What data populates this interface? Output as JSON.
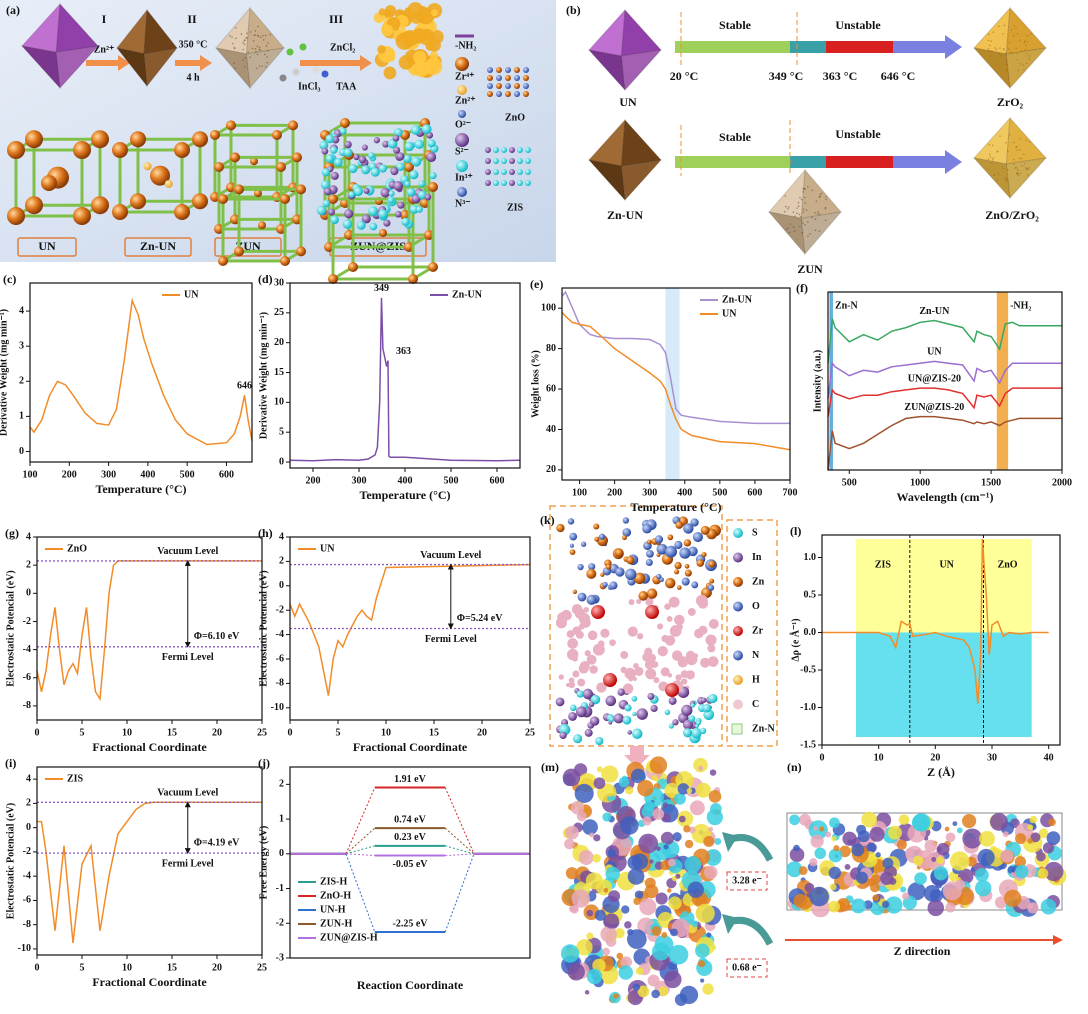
{
  "chart_data": [
    {
      "type": "line",
      "label": "(c)",
      "xlabel": "Temperature (°C)",
      "ylabel": "Derivative Weight (mg min⁻¹)",
      "x": [
        100,
        110,
        130,
        150,
        170,
        190,
        210,
        240,
        270,
        300,
        320,
        340,
        360,
        375,
        390,
        410,
        440,
        470,
        500,
        550,
        600,
        620,
        635,
        646,
        655,
        665
      ],
      "series": [
        {
          "name": "UN",
          "color": "#f28c28",
          "values": [
            0.7,
            0.55,
            0.9,
            1.6,
            2.0,
            1.9,
            1.6,
            1.1,
            0.8,
            0.75,
            1.2,
            2.6,
            4.3,
            3.9,
            3.2,
            2.5,
            1.6,
            0.9,
            0.5,
            0.2,
            0.25,
            0.5,
            1.0,
            1.6,
            0.9,
            0.3
          ]
        }
      ],
      "xlim": [
        100,
        665
      ],
      "xticks": [
        100,
        200,
        300,
        400,
        500,
        600
      ],
      "ylim": [
        -0.3,
        4.8
      ],
      "yticks": [
        0,
        1,
        2,
        3,
        4
      ],
      "peaks": [
        646
      ],
      "legend": "upper right"
    },
    {
      "type": "line",
      "label": "(d)",
      "xlabel": "Temperature (°C)",
      "ylabel": "Derivative Weight (mg min⁻¹)",
      "x": [
        150,
        200,
        250,
        300,
        320,
        335,
        340,
        345,
        349,
        352,
        356,
        360,
        363,
        365,
        368,
        400,
        500,
        600,
        650
      ],
      "series": [
        {
          "name": "Zn-UN",
          "color": "#7b4fa8",
          "values": [
            0.3,
            0.2,
            0.4,
            0.3,
            0.5,
            1.2,
            2.5,
            10,
            27.5,
            19,
            17.5,
            16,
            17,
            1,
            0.8,
            0.8,
            0.3,
            0.2,
            0.3
          ]
        }
      ],
      "xlim": [
        150,
        650
      ],
      "xticks": [
        200,
        300,
        400,
        500,
        600
      ],
      "ylim": [
        -1,
        30
      ],
      "yticks": [
        0,
        5,
        10,
        15,
        20,
        25,
        30
      ],
      "peaks": [
        349,
        363
      ],
      "legend": "upper right"
    },
    {
      "type": "line",
      "label": "(e)",
      "xlabel": "Temperature (°C)",
      "ylabel": "Weight loss (%)",
      "x": [
        50,
        60,
        80,
        100,
        130,
        150,
        200,
        250,
        300,
        330,
        345,
        360,
        375,
        390,
        420,
        500,
        600,
        700
      ],
      "series": [
        {
          "name": "Zn-UN",
          "color": "#a98fd0",
          "values": [
            106,
            108,
            100,
            92,
            87,
            86,
            85,
            85,
            84.5,
            82,
            78,
            65,
            50,
            47,
            46,
            44,
            43,
            43
          ]
        },
        {
          "name": "UN",
          "color": "#f28c28",
          "values": [
            98,
            96,
            93,
            92,
            91,
            88,
            80,
            74,
            68,
            64,
            60,
            52,
            45,
            40,
            37,
            34,
            33,
            30
          ]
        }
      ],
      "xlim": [
        50,
        700
      ],
      "xticks": [
        100,
        200,
        300,
        400,
        500,
        600,
        700
      ],
      "ylim": [
        15,
        110
      ],
      "yticks": [
        20,
        40,
        60,
        80,
        100
      ],
      "bands": [
        [
          345,
          385
        ]
      ],
      "band_colors": [
        "#cfe6f8"
      ],
      "legend": "upper right"
    },
    {
      "type": "line",
      "label": "(f)",
      "xlabel": "Wavelength (cm⁻¹)",
      "ylabel": "Intensity (a.u.)",
      "x": [
        350,
        380,
        400,
        500,
        600,
        700,
        800,
        900,
        1000,
        1100,
        1200,
        1300,
        1380,
        1400,
        1450,
        1500,
        1560,
        1600,
        1650,
        1700,
        1800,
        1900,
        2000
      ],
      "series": [
        {
          "name": "Zn-UN",
          "color": "#3aa860",
          "values": [
            6,
            8.5,
            8,
            7.2,
            7.6,
            7.3,
            7.8,
            8,
            8.3,
            8.4,
            8.2,
            8,
            7.2,
            7.8,
            7.6,
            7.5,
            6.8,
            8.2,
            8.3,
            8.1,
            8.1,
            8.1,
            8.1
          ]
        },
        {
          "name": "UN",
          "color": "#9a6fd0",
          "values": [
            4,
            6,
            5.8,
            5.3,
            5.6,
            5.5,
            5.8,
            5.9,
            6,
            6.1,
            6,
            5.9,
            5,
            5.7,
            5.5,
            5.6,
            4.9,
            5.6,
            6,
            6,
            6,
            6,
            6
          ]
        },
        {
          "name": "UN@ZIS-20",
          "color": "#e03030",
          "values": [
            3,
            4.5,
            4.3,
            4,
            4.2,
            4.2,
            4.4,
            4.5,
            4.6,
            4.6,
            4.5,
            4.3,
            3.5,
            4.2,
            4.1,
            4.2,
            3.6,
            4.3,
            4.6,
            4.6,
            4.6,
            4.6,
            4.6
          ]
        },
        {
          "name": "ZUN@ZIS-20",
          "color": "#a0522d",
          "values": [
            0,
            2.2,
            1.5,
            1.2,
            1.5,
            2,
            2.5,
            2.9,
            3,
            3,
            2.9,
            2.8,
            2.6,
            2.7,
            2.6,
            2.7,
            2.5,
            2.7,
            2.8,
            2.9,
            2.9,
            2.9,
            2.9
          ]
        }
      ],
      "xlim": [
        350,
        2000
      ],
      "xticks": [
        500,
        1000,
        1500,
        2000
      ],
      "ylim": [
        0,
        10
      ],
      "bands": [
        [
          360,
          385
        ],
        [
          1540,
          1620
        ]
      ],
      "band_colors": [
        "#4a9fd8",
        "#f0a030"
      ],
      "band_labels": [
        "Zn-N",
        "-NH₂"
      ],
      "legend": "inline"
    },
    {
      "type": "line",
      "label": "(g)",
      "xlabel": "Fractional Coordinate",
      "ylabel": "Electrostatic Potencial (eV)",
      "x": [
        0,
        0.5,
        1,
        1.5,
        2,
        2.5,
        3,
        3.5,
        4,
        4.5,
        5,
        5.5,
        6,
        6.5,
        7,
        7.5,
        8,
        8.5,
        9,
        10,
        25
      ],
      "series": [
        {
          "name": "ZnO",
          "color": "#f28c28",
          "values": [
            -5.5,
            -7,
            -5.5,
            -3,
            -1,
            -4,
            -6.5,
            -5.5,
            -5,
            -5.7,
            -3,
            -1,
            -4.5,
            -7,
            -7.5,
            -4,
            0,
            2,
            2.3,
            2.3,
            2.3
          ]
        }
      ],
      "xlim": [
        0,
        25
      ],
      "xticks": [
        0,
        5,
        10,
        15,
        20,
        25
      ],
      "ylim": [
        -9,
        4
      ],
      "yticks": [
        -8,
        -6,
        -4,
        -2,
        0,
        2,
        4
      ],
      "vacuum_level": 2.3,
      "fermi_level": -3.8,
      "level_labels": [
        "Vacuum Level",
        "Fermi Level"
      ],
      "work_function": "Φ=6.10 eV",
      "legend": "upper left"
    },
    {
      "type": "line",
      "label": "(h)",
      "xlabel": "Fractional Coordinate",
      "ylabel": "Electrostatic Potencial (eV)",
      "x": [
        0,
        0.5,
        1,
        2,
        3,
        3.5,
        4,
        4.5,
        5,
        5.5,
        6,
        7,
        7.5,
        8,
        8.5,
        9,
        10,
        25
      ],
      "series": [
        {
          "name": "UN",
          "color": "#f28c28",
          "values": [
            -1.5,
            -2.5,
            -1.5,
            -3,
            -5,
            -7,
            -9,
            -6,
            -4.5,
            -5,
            -4,
            -2.5,
            -2,
            -2.5,
            -2.8,
            -1,
            1.5,
            1.74
          ]
        }
      ],
      "xlim": [
        0,
        25
      ],
      "xticks": [
        0,
        5,
        10,
        15,
        20,
        25
      ],
      "ylim": [
        -11,
        4
      ],
      "yticks": [
        -10,
        -8,
        -6,
        -4,
        -2,
        0,
        2,
        4
      ],
      "vacuum_level": 1.74,
      "fermi_level": -3.5,
      "level_labels": [
        "Vacuum Level",
        "Fermi Level"
      ],
      "work_function": "Φ=5.24 eV",
      "legend": "upper left"
    },
    {
      "type": "line",
      "label": "(i)",
      "xlabel": "Fractional Coordinate",
      "ylabel": "Electrostatic Potencial (eV)",
      "x": [
        0,
        0.5,
        1,
        2,
        3,
        4,
        5,
        6,
        7,
        8,
        9,
        10,
        11,
        12,
        13,
        25
      ],
      "series": [
        {
          "name": "ZIS",
          "color": "#f28c28",
          "values": [
            0.5,
            0.5,
            -2,
            -8.5,
            -1.5,
            -9.5,
            -3,
            -1.5,
            -8.5,
            -4,
            -0.5,
            0.5,
            1.5,
            2,
            2.09,
            2.09
          ]
        }
      ],
      "xlim": [
        0,
        25
      ],
      "xticks": [
        0,
        5,
        10,
        15,
        20,
        25
      ],
      "ylim": [
        -10.5,
        5
      ],
      "yticks": [
        -10,
        -8,
        -6,
        -4,
        -2,
        0,
        2,
        4
      ],
      "vacuum_level": 2.09,
      "fermi_level": -2.1,
      "level_labels": [
        "Vacuum Level",
        "Fermi Level"
      ],
      "work_function": "Φ=4.19 eV",
      "legend": "upper left"
    },
    {
      "type": "energy",
      "label": "(j)",
      "xlabel": "Reaction Coordinate",
      "ylabel": "Free Energy (eV)",
      "categories": [
        null,
        null,
        null
      ],
      "series": [
        {
          "name": "ZIS-H",
          "color": "#2a9d8f",
          "values": [
            0,
            0.23,
            0
          ],
          "value_labels": [
            null,
            "0.23 eV",
            null
          ]
        },
        {
          "name": "ZnO-H",
          "color": "#d62728",
          "values": [
            0,
            1.91,
            0
          ],
          "value_labels": [
            null,
            "1.91 eV",
            null
          ]
        },
        {
          "name": "UN-H",
          "color": "#2f6fd0",
          "values": [
            0,
            -2.25,
            0
          ],
          "value_labels": [
            null,
            "-2.25 eV",
            null
          ]
        },
        {
          "name": "ZUN-H",
          "color": "#8b5a2b",
          "values": [
            0,
            0.74,
            0
          ],
          "value_labels": [
            null,
            "0.74 eV",
            null
          ]
        },
        {
          "name": "ZUN@ZIS-H",
          "color": "#b070e0",
          "values": [
            0,
            -0.05,
            0
          ],
          "value_labels": [
            null,
            "-0.05 eV",
            null
          ]
        }
      ],
      "ylim": [
        -3,
        2.5
      ],
      "yticks": [
        -3,
        -2,
        -1,
        0,
        1,
        2
      ],
      "legend": "lower left"
    },
    {
      "type": "line",
      "label": "(l)",
      "xlabel": "Z (Å)",
      "ylabel": "Δρ (e Å⁻¹)",
      "x": [
        0,
        5,
        6,
        10,
        12,
        13,
        14,
        15,
        15.5,
        16,
        18,
        20,
        22,
        25,
        26,
        27,
        27.5,
        28,
        28.3,
        28.6,
        29,
        29.5,
        30,
        31,
        32,
        33,
        35,
        37,
        40
      ],
      "series": [
        {
          "name": "Δρ",
          "color": "#f28c28",
          "values": [
            0,
            0,
            0,
            0,
            -0.05,
            -0.2,
            0.15,
            0.1,
            0.12,
            -0.05,
            -0.03,
            0,
            -0.05,
            -0.1,
            -0.2,
            -0.5,
            -0.95,
            -0.3,
            1.25,
            0.9,
            0.5,
            -0.3,
            0.1,
            0.15,
            -0.05,
            0,
            -0.02,
            0,
            0
          ]
        }
      ],
      "xlim": [
        0,
        42
      ],
      "xticks": [
        0,
        10,
        20,
        30,
        40
      ],
      "ylim": [
        -1.5,
        1.3
      ],
      "yticks": [
        -1.5,
        {
          "value": -1,
          "label": "-1.0"
        },
        -0.5,
        {
          "value": 0,
          "label": "0.0"
        },
        0.5,
        {
          "value": 1,
          "label": "1.0"
        }
      ],
      "regions": [
        "ZIS",
        "UN",
        "ZnO"
      ],
      "dividers": [
        15.5,
        28.5
      ],
      "span": [
        6,
        37
      ],
      "region_colors": [
        "#ffff99",
        "#66e0ee"
      ]
    }
  ],
  "panel_a": {
    "label": "(a)",
    "steps": [
      "I",
      "II",
      "III"
    ],
    "notes": [
      "Zn²⁺",
      "350 °C",
      "4 h",
      "ZnCl₂",
      "InCl₃",
      "TAA"
    ],
    "materials": [
      "UN",
      "Zn-UN",
      "ZUN",
      "ZUN@ZIS"
    ],
    "legend": [
      "-NH₂",
      "Zr⁴⁺",
      "Zn²⁺",
      "O²⁻",
      "S²⁻",
      "In³⁺",
      "N³⁻"
    ],
    "structures": [
      "ZnO",
      "ZIS"
    ]
  },
  "panel_b": {
    "label": "(b)",
    "stages": [
      "Stable",
      "Unstable"
    ],
    "temps": [
      "20 °C",
      "349 °C",
      "363 °C",
      "646 °C"
    ],
    "row1": [
      "UN",
      "ZrO₂"
    ],
    "row2": [
      "Zn-UN",
      "ZUN",
      "ZnO/ZrO₂"
    ]
  },
  "panel_k": {
    "label": "(k)",
    "legend": [
      "S",
      "In",
      "Zn",
      "O",
      "Zr",
      "N",
      "H",
      "C",
      "Zn-N"
    ]
  },
  "panel_m": {
    "label": "(m)",
    "charges": [
      "3.28 e⁻",
      "0.68 e⁻"
    ]
  },
  "panel_n": {
    "label": "(n)",
    "axis": "Z direction"
  }
}
